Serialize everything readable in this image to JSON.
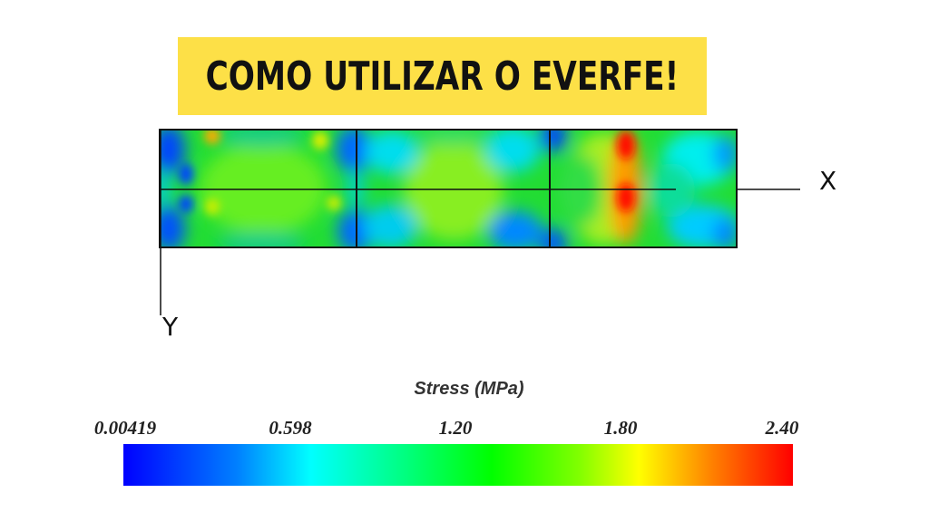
{
  "banner": {
    "title": "COMO UTILIZAR O EVERFE!"
  },
  "axes": {
    "x_label": "X",
    "y_label": "Y"
  },
  "legend": {
    "title": "Stress (MPa)",
    "ticks": [
      "0.00419",
      "0.598",
      "1.20",
      "1.80",
      "2.40"
    ],
    "colors": [
      "#0000ff",
      "#00ffff",
      "#00ff00",
      "#ffff00",
      "#ff0000"
    ]
  },
  "colors": {
    "banner_bg": "#fde047",
    "banner_text": "#111111"
  }
}
